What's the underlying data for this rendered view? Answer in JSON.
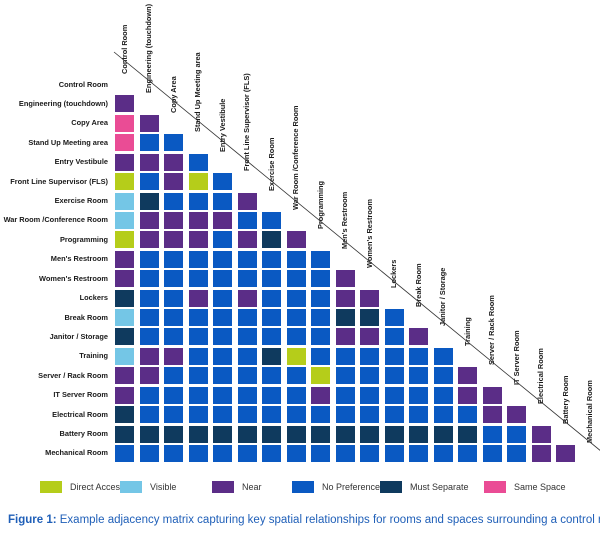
{
  "colors": {
    "direct": "#b5cd1a",
    "visible": "#74c6e6",
    "near": "#5b2d87",
    "nopref": "#0a59c2",
    "separate": "#0f3a5e",
    "same": "#ea4c95"
  },
  "rooms": [
    "Control Room",
    "Engineering (touchdown)",
    "Copy Area",
    "Stand Up Meeting area",
    "Entry Vestibule",
    "Front Line Supervisor (FLS)",
    "Exercise Room",
    "War Room /Conference Room",
    "Programming",
    "Men's Restroom",
    "Women's Restroom",
    "Lockers",
    "Break Room",
    "Janitor / Storage",
    "Training",
    "Server / Rack Room",
    "IT Server Room",
    "Electrical Room",
    "Battery Room",
    "Mechanical Room"
  ],
  "matrix": [
    [],
    [
      "near"
    ],
    [
      "same",
      "near"
    ],
    [
      "same",
      "nopref",
      "nopref"
    ],
    [
      "near",
      "near",
      "near",
      "nopref"
    ],
    [
      "direct",
      "nopref",
      "near",
      "direct",
      "nopref"
    ],
    [
      "visible",
      "separate",
      "nopref",
      "nopref",
      "nopref",
      "near"
    ],
    [
      "visible",
      "near",
      "near",
      "near",
      "near",
      "nopref",
      "nopref"
    ],
    [
      "direct",
      "near",
      "near",
      "near",
      "nopref",
      "near",
      "separate",
      "near"
    ],
    [
      "near",
      "nopref",
      "nopref",
      "nopref",
      "nopref",
      "nopref",
      "nopref",
      "nopref",
      "nopref"
    ],
    [
      "near",
      "nopref",
      "nopref",
      "nopref",
      "nopref",
      "nopref",
      "nopref",
      "nopref",
      "nopref",
      "near"
    ],
    [
      "separate",
      "nopref",
      "nopref",
      "near",
      "nopref",
      "near",
      "nopref",
      "nopref",
      "nopref",
      "near",
      "near"
    ],
    [
      "visible",
      "nopref",
      "nopref",
      "nopref",
      "nopref",
      "nopref",
      "nopref",
      "nopref",
      "nopref",
      "separate",
      "separate",
      "nopref"
    ],
    [
      "separate",
      "nopref",
      "nopref",
      "nopref",
      "nopref",
      "nopref",
      "nopref",
      "nopref",
      "nopref",
      "near",
      "near",
      "nopref",
      "near"
    ],
    [
      "visible",
      "near",
      "near",
      "nopref",
      "nopref",
      "nopref",
      "separate",
      "direct",
      "nopref",
      "nopref",
      "nopref",
      "nopref",
      "nopref",
      "nopref"
    ],
    [
      "near",
      "near",
      "nopref",
      "nopref",
      "nopref",
      "nopref",
      "nopref",
      "nopref",
      "direct",
      "nopref",
      "nopref",
      "nopref",
      "nopref",
      "nopref",
      "near"
    ],
    [
      "near",
      "nopref",
      "nopref",
      "nopref",
      "nopref",
      "nopref",
      "nopref",
      "nopref",
      "near",
      "nopref",
      "nopref",
      "nopref",
      "nopref",
      "nopref",
      "near",
      "near"
    ],
    [
      "separate",
      "nopref",
      "nopref",
      "nopref",
      "nopref",
      "nopref",
      "nopref",
      "nopref",
      "nopref",
      "nopref",
      "nopref",
      "nopref",
      "nopref",
      "nopref",
      "nopref",
      "near",
      "near"
    ],
    [
      "separate",
      "separate",
      "separate",
      "separate",
      "separate",
      "separate",
      "separate",
      "separate",
      "separate",
      "separate",
      "separate",
      "separate",
      "separate",
      "separate",
      "separate",
      "nopref",
      "nopref",
      "near"
    ],
    [
      "nopref",
      "nopref",
      "nopref",
      "nopref",
      "nopref",
      "nopref",
      "nopref",
      "nopref",
      "nopref",
      "nopref",
      "nopref",
      "nopref",
      "nopref",
      "nopref",
      "nopref",
      "nopref",
      "nopref",
      "near",
      "near"
    ]
  ],
  "legend": [
    {
      "key": "direct",
      "label": "Direct Access"
    },
    {
      "key": "visible",
      "label": "Visible"
    },
    {
      "key": "near",
      "label": "Near"
    },
    {
      "key": "nopref",
      "label": "No Preference"
    },
    {
      "key": "separate",
      "label": "Must Separate"
    },
    {
      "key": "same",
      "label": "Same Space"
    }
  ],
  "caption": {
    "figure": "Figure 1:",
    "text": " Example adjacency matrix capturing key spatial relationships for rooms and spaces surrounding a control room."
  }
}
